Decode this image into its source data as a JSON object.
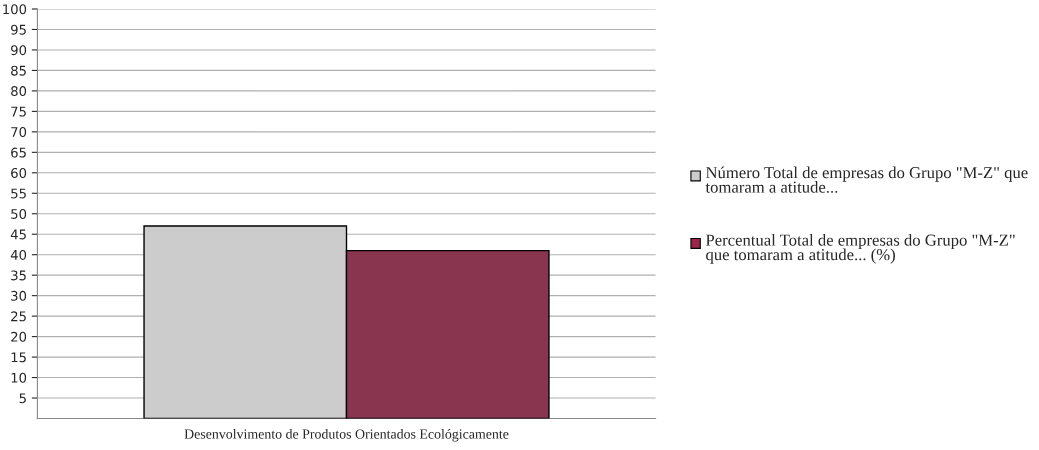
{
  "chart_data": {
    "type": "bar",
    "xlabel": "Desenvolvimento de Produtos Orientados Ecológicamente",
    "categories": [
      null
    ],
    "series": [
      {
        "name": "Número Total de empresas do Grupo \"M-Z\" que tomaram a atitude...",
        "color": "#cccccc",
        "values": [
          47
        ]
      },
      {
        "name": "Percentual Total de empresas do Grupo \"M-Z\" que tomaram a atitude... (%)",
        "color": "#98274b",
        "values": [
          41
        ]
      }
    ],
    "ylim": [
      0,
      100
    ],
    "yticks": [
      5,
      10,
      15,
      20,
      25,
      30,
      35,
      40,
      45,
      50,
      55,
      60,
      65,
      70,
      75,
      80,
      85,
      90,
      95,
      100
    ],
    "grid": "y",
    "legend": "right"
  }
}
